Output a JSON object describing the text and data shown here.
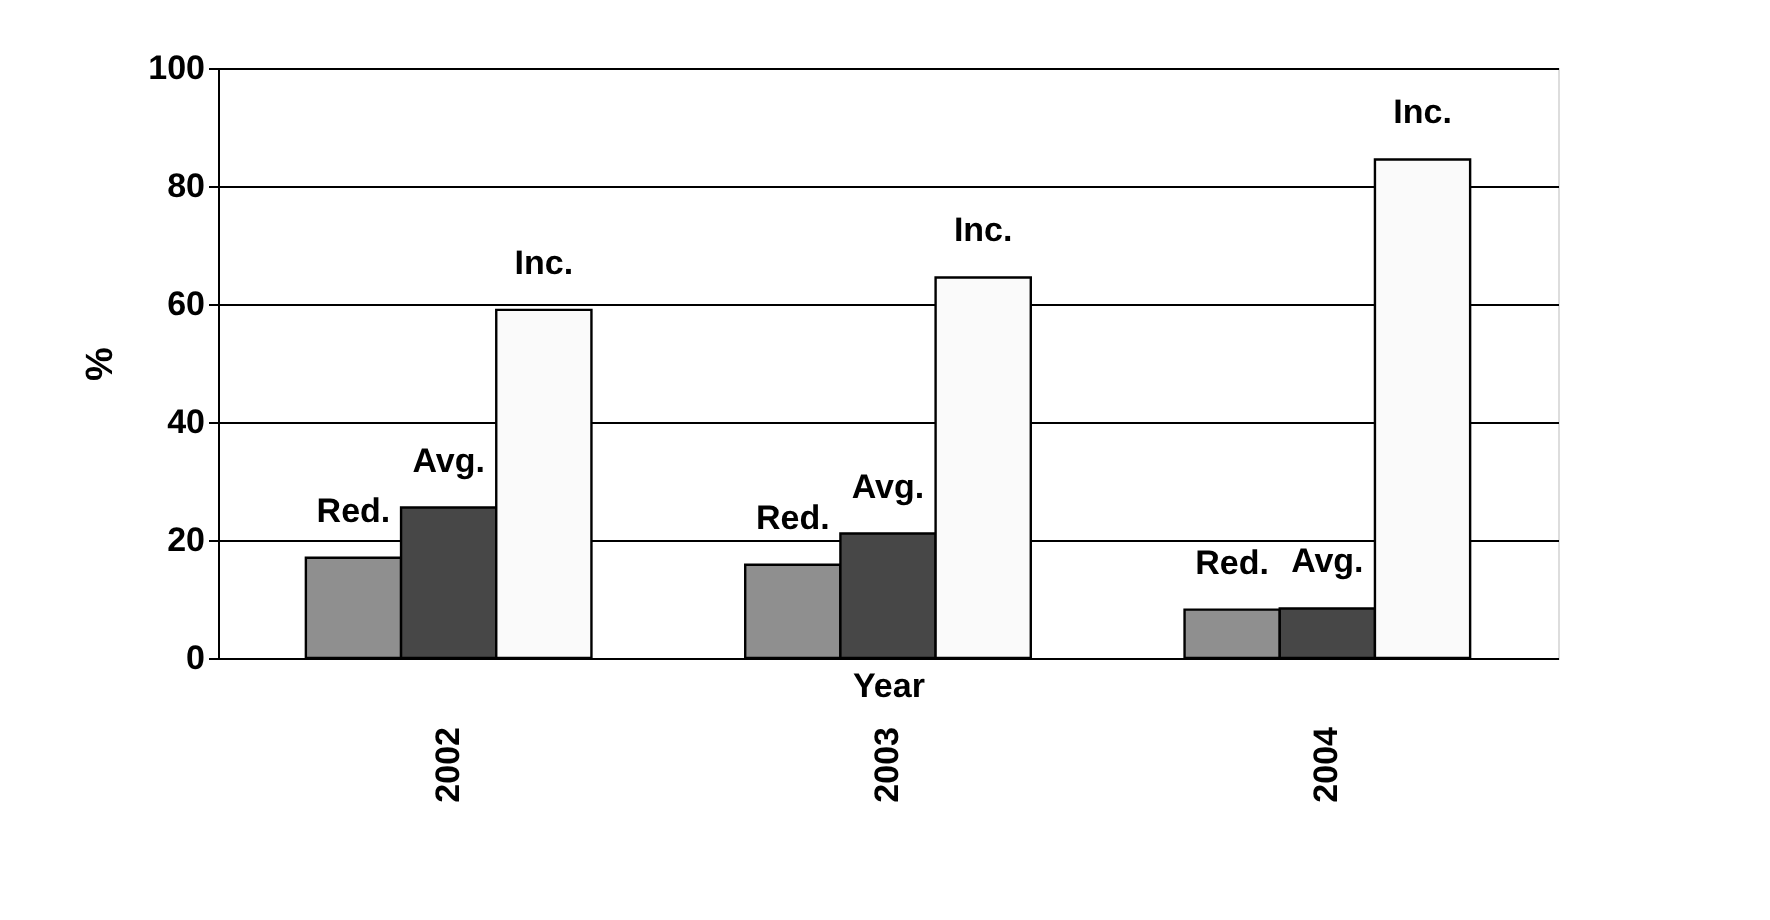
{
  "chart_data": {
    "type": "bar",
    "xlabel": "Year",
    "ylabel": "%",
    "categories": [
      "2002",
      "2003",
      "2004"
    ],
    "series": [
      {
        "name": "Red.",
        "color": "#8f8f8f",
        "values": [
          17,
          15.8,
          8.2
        ]
      },
      {
        "name": "Avg.",
        "color": "#474747",
        "values": [
          25.5,
          21.1,
          8.4
        ]
      },
      {
        "name": "Inc.",
        "color": "#fafafa",
        "values": [
          59,
          64.5,
          84.5
        ]
      }
    ],
    "ylim": [
      0,
      100
    ],
    "yticks": [
      0,
      20,
      40,
      60,
      80,
      100
    ],
    "grid": "y",
    "legend": false
  }
}
